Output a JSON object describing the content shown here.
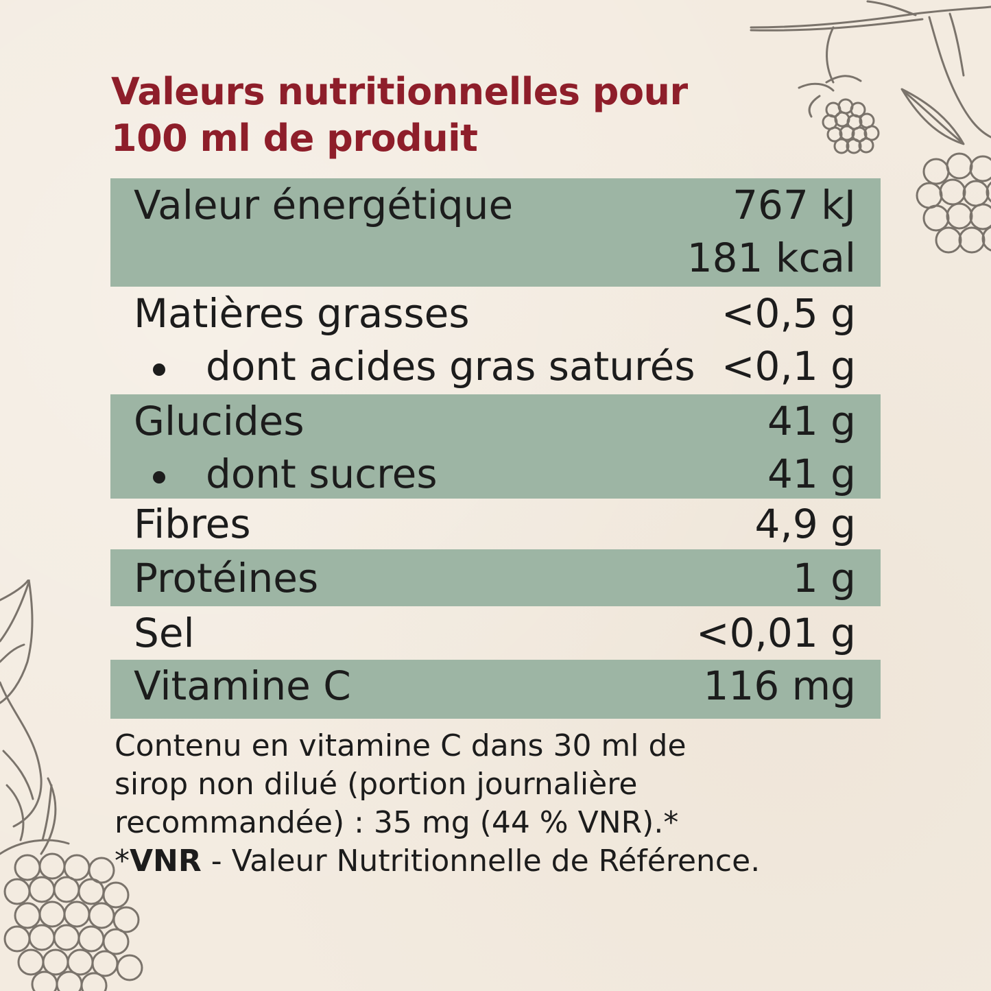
{
  "title": {
    "line1": "Valeurs nutritionnelles pour",
    "line2": "100 ml de produit"
  },
  "rows": [
    {
      "label": "Valeur énergétique",
      "value": "767 kJ",
      "value2": "181 kcal"
    },
    {
      "label": "Matières grasses",
      "value": "<0,5 g"
    },
    {
      "label": "dont acides gras saturés",
      "value": "<0,1 g"
    },
    {
      "label": "Glucides",
      "value": "41 g"
    },
    {
      "label": "dont sucres",
      "value": "41 g"
    },
    {
      "label": "Fibres",
      "value": "4,9 g"
    },
    {
      "label": "Protéines",
      "value": "1 g"
    },
    {
      "label": "Sel",
      "value": "<0,01 g"
    },
    {
      "label": "Vitamine C",
      "value": "116 mg"
    }
  ],
  "note": {
    "line1": "Contenu en vitamine C dans 30 ml de",
    "line2": "sirop non dilué (portion journalière",
    "line3": "recommandée) : 35 mg (44 % VNR).*",
    "vnr_prefix": "*",
    "vnr_bold": "VNR",
    "vnr_rest": " - Valeur Nutritionnelle de Référence."
  },
  "colors": {
    "title": "#8e1e2a",
    "row_shade": "#9db5a4",
    "background": "#f3ebe0",
    "illustration": "#7a736b"
  },
  "icons": [
    "raspberry-branch-illustration",
    "raspberry-leaf-illustration"
  ]
}
